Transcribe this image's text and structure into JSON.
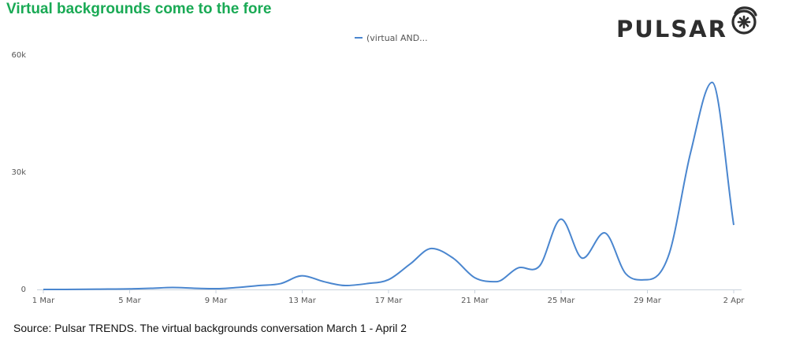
{
  "header": {
    "title": "Virtual backgrounds come to the fore",
    "title_color": "#1aaa55"
  },
  "brand": {
    "name": "PULSAR",
    "logo_icon": "pulsar-spiral-icon"
  },
  "footer": {
    "source": "Source: Pulsar TRENDS. The virtual backgrounds conversation March 1 - April 2"
  },
  "chart_data": {
    "type": "line",
    "title": "Virtual backgrounds come to the fore",
    "xlabel": "",
    "ylabel": "",
    "ylim": [
      0,
      60000
    ],
    "y_ticks": [
      0,
      30000,
      60000
    ],
    "y_tick_labels": [
      "0",
      "30k",
      "60k"
    ],
    "x_ticks": [
      0,
      4,
      8,
      12,
      16,
      20,
      24,
      28,
      32
    ],
    "x_tick_labels": [
      "1 Mar",
      "5 Mar",
      "9 Mar",
      "13 Mar",
      "17 Mar",
      "21 Mar",
      "25 Mar",
      "29 Mar",
      "2 Apr"
    ],
    "x_dates": [
      "2020-03-01",
      "2020-03-02",
      "2020-03-03",
      "2020-03-04",
      "2020-03-05",
      "2020-03-06",
      "2020-03-07",
      "2020-03-08",
      "2020-03-09",
      "2020-03-10",
      "2020-03-11",
      "2020-03-12",
      "2020-03-13",
      "2020-03-14",
      "2020-03-15",
      "2020-03-16",
      "2020-03-17",
      "2020-03-18",
      "2020-03-19",
      "2020-03-20",
      "2020-03-21",
      "2020-03-22",
      "2020-03-23",
      "2020-03-24",
      "2020-03-25",
      "2020-03-26",
      "2020-03-27",
      "2020-03-28",
      "2020-03-29",
      "2020-03-30",
      "2020-03-31",
      "2020-04-01",
      "2020-04-02"
    ],
    "grid": false,
    "legend_position": "top-center",
    "series": [
      {
        "name": "(virtual AND...",
        "color": "#4a86cf",
        "values": [
          0,
          0,
          50,
          100,
          150,
          300,
          500,
          300,
          200,
          500,
          1000,
          1500,
          3500,
          2000,
          1000,
          1500,
          2500,
          6500,
          10500,
          8000,
          3000,
          2000,
          5500,
          6000,
          18000,
          8000,
          14500,
          4000,
          2500,
          9000,
          35000,
          53000,
          16500
        ]
      }
    ]
  }
}
